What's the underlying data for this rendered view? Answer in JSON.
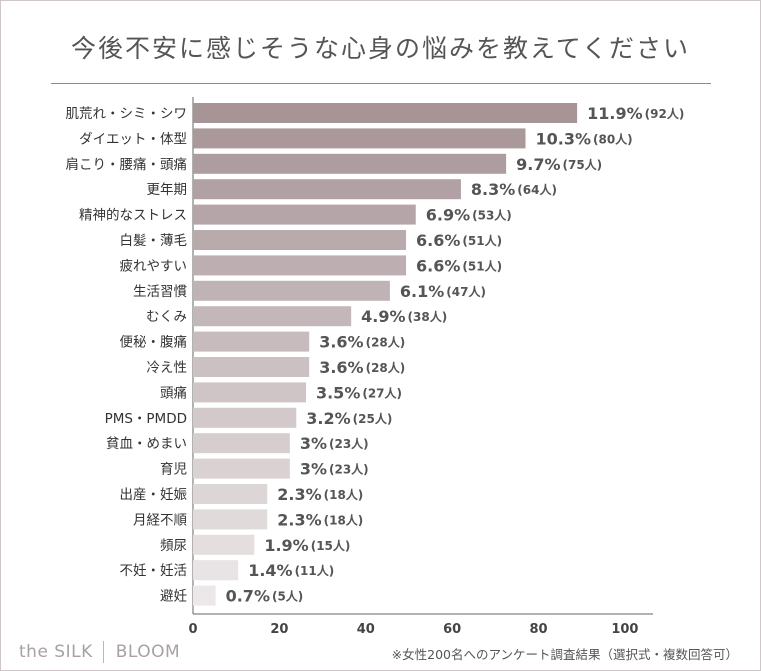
{
  "chart_data": {
    "type": "bar",
    "orientation": "horizontal",
    "title": "今後不安に感じそうな心身の悩みを教えてください",
    "categories": [
      "肌荒れ・シミ・シワ",
      "ダイエット・体型",
      "肩こり・腰痛・頭痛",
      "更年期",
      "精神的なストレス",
      "白髪・薄毛",
      "疲れやすい",
      "生活習慣",
      "むくみ",
      "便秘・腹痛",
      "冷え性",
      "頭痛",
      "PMS・PMDD",
      "貧血・めまい",
      "育児",
      "出産・妊娠",
      "月経不順",
      "頻尿",
      "不妊・妊活",
      "避妊"
    ],
    "values": [
      11.9,
      10.3,
      9.7,
      8.3,
      6.9,
      6.6,
      6.6,
      6.1,
      4.9,
      3.6,
      3.6,
      3.5,
      3.2,
      3,
      3,
      2.3,
      2.3,
      1.9,
      1.4,
      0.7
    ],
    "value_labels": [
      "11.9%",
      "10.3%",
      "9.7%",
      "8.3%",
      "6.9%",
      "6.6%",
      "6.6%",
      "6.1%",
      "4.9%",
      "3.6%",
      "3.6%",
      "3.5%",
      "3.2%",
      "3%",
      "3%",
      "2.3%",
      "2.3%",
      "1.9%",
      "1.4%",
      "0.7%"
    ],
    "count_labels": [
      "(92人)",
      "(80人)",
      "(75人)",
      "(64人)",
      "(53人)",
      "(51人)",
      "(51人)",
      "(47人)",
      "(38人)",
      "(28人)",
      "(28人)",
      "(27人)",
      "(25人)",
      "(23人)",
      "(23人)",
      "(18人)",
      "(18人)",
      "(15人)",
      "(11人)",
      "(5人)"
    ],
    "x_ticks": [
      0,
      20,
      40,
      60,
      80,
      100
    ],
    "x_tick_labels": [
      "0",
      "20",
      "40",
      "60",
      "80",
      "100"
    ],
    "bar_scale_max": 14.25,
    "xlabel": "",
    "ylabel": "",
    "grid": false,
    "bar_color_dark": "#a79497",
    "bar_color_light": "#ece7e8"
  },
  "footer": {
    "brand_left": "the SILK",
    "brand_right": "BLOOM",
    "note": "※女性200名へのアンケート調査結果（選択式・複数回答可）"
  }
}
